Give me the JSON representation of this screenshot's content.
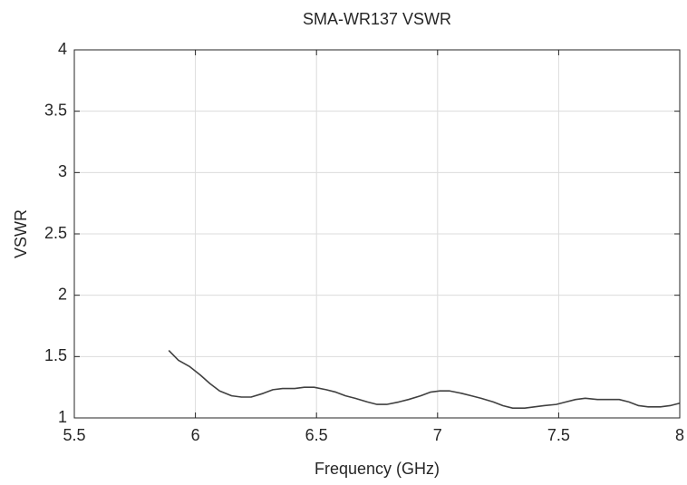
{
  "chart_data": {
    "type": "line",
    "title": "SMA-WR137 VSWR",
    "xlabel": "Frequency (GHz)",
    "ylabel": "VSWR",
    "xlim": [
      5.5,
      8
    ],
    "ylim": [
      1,
      4
    ],
    "xticks": [
      5.5,
      6,
      6.5,
      7,
      7.5,
      8
    ],
    "yticks": [
      1,
      1.5,
      2,
      2.5,
      3,
      3.5,
      4
    ],
    "grid": true,
    "x": [
      5.89,
      5.93,
      5.975,
      6.02,
      6.06,
      6.1,
      6.15,
      6.19,
      6.23,
      6.28,
      6.32,
      6.36,
      6.41,
      6.45,
      6.49,
      6.54,
      6.58,
      6.62,
      6.66,
      6.71,
      6.75,
      6.79,
      6.84,
      6.88,
      6.93,
      6.97,
      7.01,
      7.05,
      7.1,
      7.14,
      7.18,
      7.23,
      7.27,
      7.31,
      7.36,
      7.4,
      7.44,
      7.49,
      7.53,
      7.57,
      7.61,
      7.66,
      7.7,
      7.75,
      7.79,
      7.83,
      7.87,
      7.92,
      7.96,
      8.0
    ],
    "series": [
      {
        "color": "#404040",
        "values": [
          1.55,
          1.47,
          1.42,
          1.35,
          1.28,
          1.22,
          1.18,
          1.17,
          1.17,
          1.2,
          1.23,
          1.24,
          1.24,
          1.25,
          1.25,
          1.23,
          1.21,
          1.18,
          1.16,
          1.13,
          1.11,
          1.11,
          1.13,
          1.15,
          1.18,
          1.21,
          1.22,
          1.22,
          1.2,
          1.18,
          1.16,
          1.13,
          1.1,
          1.08,
          1.08,
          1.09,
          1.1,
          1.11,
          1.13,
          1.15,
          1.16,
          1.15,
          1.15,
          1.15,
          1.13,
          1.1,
          1.09,
          1.09,
          1.1,
          1.12
        ]
      }
    ]
  }
}
